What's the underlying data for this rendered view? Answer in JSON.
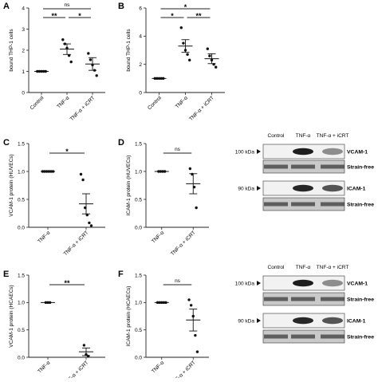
{
  "panels": [
    {
      "id": "A",
      "letter": "A",
      "ylabel": "bound THP-1 cells",
      "yticks": [
        "0",
        "1",
        "2",
        "3",
        "4"
      ],
      "ylim": [
        0,
        4
      ],
      "cats": [
        "Control",
        "TNF-α",
        "TNF-α + iCRT"
      ],
      "brackets": [
        {
          "from": 0,
          "to": 1,
          "label": "**",
          "tier": 1
        },
        {
          "from": 1,
          "to": 2,
          "label": "*",
          "tier": 1
        },
        {
          "from": 0,
          "to": 2,
          "label": "ns",
          "tier": 2
        }
      ]
    },
    {
      "id": "B",
      "letter": "B",
      "ylabel": "bound THP-1 cells",
      "yticks": [
        "0",
        "2",
        "4",
        "6"
      ],
      "ylim": [
        0,
        6
      ],
      "cats": [
        "Control",
        "TNF-α",
        "TNF-α + iCRT"
      ],
      "brackets": [
        {
          "from": 0,
          "to": 1,
          "label": "*",
          "tier": 1
        },
        {
          "from": 1,
          "to": 2,
          "label": "**",
          "tier": 1
        },
        {
          "from": 0,
          "to": 2,
          "label": "*",
          "tier": 2
        }
      ]
    },
    {
      "id": "C",
      "letter": "C",
      "ylabel": "VCAM-1 protein (HUVECs)",
      "yticks": [
        "0.0",
        "0.5",
        "1.0",
        "1.5"
      ],
      "ylim": [
        0,
        1.5
      ],
      "cats": [
        "TNF-α",
        "TNF-α + iCRT"
      ],
      "brackets": [
        {
          "from": 0,
          "to": 1,
          "label": "*",
          "tier": 1
        }
      ]
    },
    {
      "id": "D",
      "letter": "D",
      "ylabel": "ICAM-1 protein (HUVECs)",
      "yticks": [
        "0.0",
        "0.5",
        "1.0",
        "1.5"
      ],
      "ylim": [
        0,
        1.5
      ],
      "cats": [
        "TNF-α",
        "TNF-α + iCRT"
      ],
      "brackets": [
        {
          "from": 0,
          "to": 1,
          "label": "ns",
          "tier": 1
        }
      ]
    },
    {
      "id": "E",
      "letter": "E",
      "ylabel": "VCAM-1 protein (HCAECs)",
      "yticks": [
        "0.0",
        "0.5",
        "1.0",
        "1.5"
      ],
      "ylim": [
        0,
        1.5
      ],
      "cats": [
        "TNF-α",
        "TNF-α + iCRT"
      ],
      "brackets": [
        {
          "from": 0,
          "to": 1,
          "label": "**",
          "tier": 1
        }
      ]
    },
    {
      "id": "F",
      "letter": "F",
      "ylabel": "ICAM-1 protein (HCAECs)",
      "yticks": [
        "0.0",
        "0.5",
        "1.0",
        "1.5"
      ],
      "ylim": [
        0,
        1.5
      ],
      "cats": [
        "TNF-α",
        "TNF-α + iCRT"
      ],
      "brackets": [
        {
          "from": 0,
          "to": 1,
          "label": "ns",
          "tier": 1
        }
      ]
    }
  ],
  "chart_data": [
    {
      "type": "scatter",
      "panel": "A",
      "ylabel": "bound THP-1 cells",
      "ylim": [
        0,
        4
      ],
      "grid": false,
      "categories": [
        "Control",
        "TNF-α",
        "TNF-α + iCRT"
      ],
      "points": [
        [
          1,
          1,
          1,
          1,
          1
        ],
        [
          2.5,
          2.3,
          2.1,
          1.75,
          1.45
        ],
        [
          1.85,
          1.55,
          1.3,
          1.05,
          0.8
        ]
      ],
      "mean": [
        1.0,
        2.05,
        1.35
      ],
      "sem": [
        0,
        0.25,
        0.3
      ]
    },
    {
      "type": "scatter",
      "panel": "B",
      "ylabel": "bound THP-1 cells",
      "ylim": [
        0,
        6
      ],
      "grid": false,
      "categories": [
        "Control",
        "TNF-α",
        "TNF-α + iCRT"
      ],
      "points": [
        [
          1,
          1,
          1,
          1,
          1
        ],
        [
          4.6,
          3.5,
          3.0,
          2.7,
          2.3
        ],
        [
          3.1,
          2.6,
          2.3,
          2.0,
          1.8
        ]
      ],
      "mean": [
        1.0,
        3.3,
        2.4
      ],
      "sem": [
        0,
        0.45,
        0.35
      ]
    },
    {
      "type": "scatter",
      "panel": "C",
      "ylabel": "VCAM-1 protein (HUVECs)",
      "ylim": [
        0,
        1.5
      ],
      "grid": false,
      "categories": [
        "TNF-α",
        "TNF-α + iCRT"
      ],
      "points": [
        [
          1,
          1,
          1,
          1,
          1,
          1
        ],
        [
          0.95,
          0.85,
          0.35,
          0.22,
          0.08,
          0.03
        ]
      ],
      "mean": [
        1.0,
        0.42
      ],
      "sem": [
        0,
        0.18
      ]
    },
    {
      "type": "scatter",
      "panel": "D",
      "ylabel": "ICAM-1 protein (HUVECs)",
      "ylim": [
        0,
        1.5
      ],
      "grid": false,
      "categories": [
        "TNF-α",
        "TNF-α + iCRT"
      ],
      "points": [
        [
          1,
          1,
          1,
          1
        ],
        [
          1.05,
          0.95,
          0.72,
          0.35
        ]
      ],
      "mean": [
        1.0,
        0.78
      ],
      "sem": [
        0,
        0.18
      ]
    },
    {
      "type": "scatter",
      "panel": "E",
      "ylabel": "VCAM-1 protein (HCAECs)",
      "ylim": [
        0,
        1.5
      ],
      "grid": false,
      "categories": [
        "TNF-α",
        "TNF-α + iCRT"
      ],
      "points": [
        [
          1,
          1,
          1
        ],
        [
          0.22,
          0.05,
          0.02
        ]
      ],
      "mean": [
        1.0,
        0.1
      ],
      "sem": [
        0,
        0.07
      ]
    },
    {
      "type": "scatter",
      "panel": "F",
      "ylabel": "ICAM-1 protein (HCAECs)",
      "ylim": [
        0,
        1.5
      ],
      "grid": false,
      "categories": [
        "TNF-α",
        "TNF-α + iCRT"
      ],
      "points": [
        [
          1,
          1,
          1,
          1,
          1
        ],
        [
          1.05,
          0.95,
          0.75,
          0.4,
          0.1
        ]
      ],
      "mean": [
        1.0,
        0.68
      ],
      "sem": [
        0,
        0.2
      ]
    }
  ],
  "blots": [
    {
      "id": "blot-top",
      "headers": [
        "Control",
        "TNF-α",
        "TNF-α + iCRT"
      ],
      "rows": [
        {
          "kda": "100 kDa",
          "name": "VCAM-1"
        },
        {
          "name": "Strain-free"
        },
        {
          "kda": "90 kDa",
          "name": "ICAM-1"
        },
        {
          "name": "Strain-free"
        }
      ]
    },
    {
      "id": "blot-bottom",
      "headers": [
        "Control",
        "TNF-α",
        "TNF-α + iCRT"
      ],
      "rows": [
        {
          "kda": "100 kDa",
          "name": "VCAM-1"
        },
        {
          "name": "Strain-free"
        },
        {
          "kda": "90 kDa",
          "name": "ICAM-1"
        },
        {
          "name": "Strain-free"
        }
      ]
    }
  ]
}
